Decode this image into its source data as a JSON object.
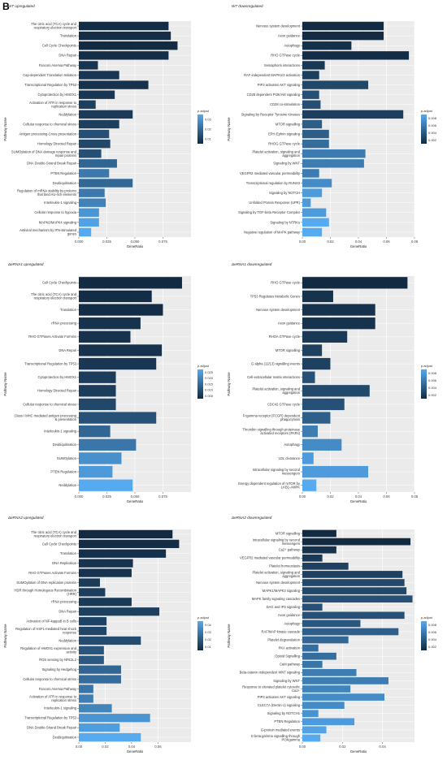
{
  "panel_letter": "B",
  "colors": {
    "high": "#55aaf0",
    "low": "#122a42",
    "panel_bg": "#ebebeb",
    "grid": "#ffffff"
  },
  "chart_data": [
    {
      "type": "bar",
      "orientation": "horizontal",
      "title": "WT upregulated",
      "xlabel": "GeneRatio",
      "ylabel": "Pathway Name",
      "xlim": [
        0,
        0.1
      ],
      "xticks": [
        "0.000",
        "0.025",
        "0.050",
        "0.075"
      ],
      "xtick_values": [
        0,
        0.025,
        0.05,
        0.075
      ],
      "legend": {
        "title": "p.adjust",
        "labels": [
          "0.01",
          "0.02",
          "0.03"
        ],
        "position": "right"
      },
      "categories": [
        "The citric acid (TCA) cycle and respiratory electron transport",
        "Translation",
        "Cell Cycle Checkpoints",
        "DNA Repair",
        "Fanconi Anemia Pathway",
        "Cap-dependent Translation Initiation",
        "Transcriptional Regulation by TP53",
        "Cytoprotection by HMOX1",
        "Activation of ATR in response to replication stress",
        "Neddylation",
        "Cellular response to chemical stress",
        "Antigen processing-Cross presentation",
        "Homology Directed Repair",
        "SUMOylation of DNA damage response and repair proteins",
        "DNA Double-Strand Break Repair",
        "PTEN Regulation",
        "Deubiquitination",
        "Regulation of mRNA stability by proteins that bind AU-rich elements",
        "Interleukin-1 signaling",
        "Cellular response to hypoxia",
        "MAPK6/MAPK4 signaling",
        "Antiviral mechanism by IFN-stimulated genes"
      ],
      "values": [
        0.08,
        0.082,
        0.088,
        0.08,
        0.017,
        0.036,
        0.062,
        0.032,
        0.015,
        0.048,
        0.036,
        0.027,
        0.028,
        0.02,
        0.034,
        0.027,
        0.048,
        0.023,
        0.024,
        0.018,
        0.018,
        0.011
      ],
      "p_adjust": [
        0.0015,
        0.002,
        0.001,
        0.002,
        0.004,
        0.004,
        0.003,
        0.004,
        0.006,
        0.005,
        0.006,
        0.01,
        0.008,
        0.01,
        0.015,
        0.02,
        0.016,
        0.02,
        0.022,
        0.027,
        0.03,
        0.032
      ]
    },
    {
      "type": "bar",
      "orientation": "horizontal",
      "title": "WT downregulated",
      "xlabel": "GeneRatio",
      "ylabel": "Pathway Name",
      "xlim": [
        0,
        0.08
      ],
      "xticks": [
        "0.00",
        "0.02",
        "0.04",
        "0.06",
        "0.08"
      ],
      "xtick_values": [
        0,
        0.02,
        0.04,
        0.06,
        0.08
      ],
      "legend": {
        "title": "p.adjust",
        "labels": [
          "0.002",
          "0.004",
          "0.006",
          "0.008"
        ],
        "position": "right"
      },
      "categories": [
        "Nervous system development",
        "Axon guidance",
        "Autophagy",
        "RHO GTPase cycle",
        "Semaphorin interactions",
        "RAF-independent MAPK1/3 activation",
        "PIP3 activates AKT signaling",
        "CD28 dependent PI3K/Akt signaling",
        "CD28 co-stimulation",
        "Signaling by Receptor Tyrosine Kinases",
        "MTOR signalling",
        "EPH-Ephrin signaling",
        "RHOG GTPase cycle",
        "Platelet activation, signaling and aggregation",
        "Signaling by WNT",
        "VEGFR2 mediated vascular permeability",
        "Transcriptional regulation by RUNX3",
        "Signaling by NOTCH",
        "Unfolded Protein Response (UPR)",
        "Signaling by TGF-beta Receptor Complex",
        "Signaling by NTRKs",
        "Negative regulation of MAPK pathway"
      ],
      "values": [
        0.058,
        0.058,
        0.035,
        0.076,
        0.016,
        0.012,
        0.047,
        0.012,
        0.013,
        0.072,
        0.014,
        0.019,
        0.019,
        0.045,
        0.044,
        0.012,
        0.021,
        0.014,
        0.006,
        0.017,
        0.019,
        0.014
      ],
      "p_adjust": [
        0.0006,
        0.0007,
        0.001,
        0.0008,
        0.0015,
        0.002,
        0.0025,
        0.003,
        0.003,
        0.002,
        0.004,
        0.004,
        0.005,
        0.006,
        0.006,
        0.006,
        0.007,
        0.008,
        0.008,
        0.008,
        0.009,
        0.009
      ]
    },
    {
      "type": "bar",
      "orientation": "horizontal",
      "title": "ΔeRNA1 upregulated",
      "xlabel": "GeneRatio",
      "ylabel": "Pathway Name",
      "xlim": [
        0,
        0.1
      ],
      "xticks": [
        "0.000",
        "0.025",
        "0.050",
        "0.075"
      ],
      "xtick_values": [
        0,
        0.025,
        0.05,
        0.075
      ],
      "legend": {
        "title": "p.adjust",
        "labels": [
          "0.005",
          "0.010",
          "0.015",
          "0.020",
          "0.025"
        ],
        "position": "right"
      },
      "categories": [
        "Cell Cycle Checkpoints",
        "The citric acid (TCA) cycle and respiratory electron transport",
        "Translation",
        "rRNA processing",
        "RHO GTPases Activate Formins",
        "DNA Repair",
        "Transcriptional Regulation by TP53",
        "Cytoprotection by HMOX1",
        "Homology Directed Repair",
        "Cellular response to chemical stress",
        "Class I MHC mediated antigen processing & presentation",
        "Interleukin-1 signaling",
        "Deubiquitination",
        "SUMOylation",
        "PTEN Regulation",
        "Neddylation"
      ],
      "values": [
        0.092,
        0.065,
        0.075,
        0.055,
        0.046,
        0.074,
        0.069,
        0.033,
        0.033,
        0.033,
        0.069,
        0.028,
        0.051,
        0.038,
        0.03,
        0.048
      ],
      "p_adjust": [
        0.0005,
        0.001,
        0.001,
        0.002,
        0.002,
        0.002,
        0.003,
        0.004,
        0.004,
        0.006,
        0.008,
        0.012,
        0.015,
        0.02,
        0.022,
        0.025
      ]
    },
    {
      "type": "bar",
      "orientation": "horizontal",
      "title": "ΔeRNA1 downregulated",
      "xlabel": "GeneRatio",
      "ylabel": "Pathway Name",
      "xlim": [
        0,
        0.08
      ],
      "xticks": [
        "0.00",
        "0.02",
        "0.04",
        "0.06",
        "0.08"
      ],
      "xtick_values": [
        0,
        0.02,
        0.04,
        0.06,
        0.08
      ],
      "legend": {
        "title": "p.adjust",
        "labels": [
          "0.002",
          "0.004",
          "0.006",
          "0.008"
        ],
        "position": "right"
      },
      "categories": [
        "RHO GTPase cycle",
        "TP53 Regulates Metabolic Genes",
        "Nervous system development",
        "Axon guidance",
        "RHOA GTPase cycle",
        "MTOR signalling",
        "G alpha (12/13) signalling events",
        "Cell-extracellular matrix interactions",
        "Platelet activation, signaling and aggregation",
        "CDC42 GTPase cycle",
        "Fcgamma receptor (FCGR) dependent phagocytosis",
        "Thrombin signalling through proteinase activated receptors (PARs)",
        "Autophagy",
        "LDL clearance",
        "Intracellular signaling by second messengers",
        "Energy dependent regulation of mTOR by LKB1-AMPK"
      ],
      "values": [
        0.075,
        0.022,
        0.052,
        0.052,
        0.032,
        0.014,
        0.02,
        0.009,
        0.048,
        0.03,
        0.02,
        0.011,
        0.028,
        0.008,
        0.047,
        0.01
      ],
      "p_adjust": [
        0.0005,
        0.001,
        0.001,
        0.001,
        0.0015,
        0.002,
        0.002,
        0.003,
        0.0025,
        0.003,
        0.004,
        0.006,
        0.007,
        0.008,
        0.008,
        0.009
      ]
    },
    {
      "type": "bar",
      "orientation": "horizontal",
      "title": "ΔeRNA2 upregulated",
      "xlabel": "GeneRatio",
      "ylabel": "Pathway Name",
      "xlim": [
        0,
        0.085
      ],
      "xticks": [
        "0.00",
        "0.02",
        "0.04",
        "0.06"
      ],
      "xtick_values": [
        0,
        0.02,
        0.04,
        0.06
      ],
      "legend": {
        "title": "p.adjust",
        "labels": [
          "0.01",
          "0.02",
          "0.03",
          "0.04"
        ],
        "position": "right"
      },
      "categories": [
        "The citric acid (TCA) cycle and respiratory electron transport",
        "Cell Cycle Checkpoints",
        "Translation",
        "DNA Replication",
        "RHO GTPases Activate Formins",
        "SUMOylation of DNA replication proteins",
        "HDR through Homologous Recombination (HRR)",
        "rRNA processing",
        "DNA Repair",
        "Activation of NF-kappaB in B cells",
        "Regulation of HSF1-mediated heat shock response",
        "Neddylation",
        "Regulation of HMOX1 expression and activity",
        "ROS sensing by NFE2L2",
        "Signaling by Hedgehog",
        "Cellular response to chemical stress",
        "Fanconi Anemia Pathway",
        "Activation of ATR in response to replication stress",
        "Interleukin-1 signaling",
        "Transcriptional Regulation by TP53",
        "DNA Double-Strand Break Repair",
        "Deubiquitination"
      ],
      "values": [
        0.071,
        0.076,
        0.066,
        0.041,
        0.04,
        0.016,
        0.02,
        0.04,
        0.061,
        0.021,
        0.021,
        0.047,
        0.019,
        0.019,
        0.032,
        0.032,
        0.011,
        0.011,
        0.025,
        0.054,
        0.031,
        0.047
      ],
      "p_adjust": [
        0.001,
        0.002,
        0.003,
        0.004,
        0.004,
        0.006,
        0.007,
        0.006,
        0.008,
        0.009,
        0.01,
        0.012,
        0.015,
        0.016,
        0.02,
        0.022,
        0.025,
        0.028,
        0.03,
        0.035,
        0.038,
        0.042
      ]
    },
    {
      "type": "bar",
      "orientation": "horizontal",
      "title": "ΔeRNA2 downregulated",
      "xlabel": "GeneRatio",
      "ylabel": "Pathway Name",
      "xlim": [
        0,
        0.056
      ],
      "xticks": [
        "0.00",
        "0.02",
        "0.04"
      ],
      "xtick_values": [
        0,
        0.02,
        0.04
      ],
      "legend": {
        "title": "p.adjust",
        "labels": [
          "0.002",
          "0.004",
          "0.006",
          "0.008"
        ],
        "position": "right"
      },
      "categories": [
        "MTOR signalling",
        "Intracellular signaling by second messengers",
        "Ca2+ pathway",
        "VEGFR2 mediated vascular permeability",
        "Platelet homeostasis",
        "Platelet activation, signaling and aggregation",
        "Nervous system development",
        "MAPK1/MAPK3 signaling",
        "MAPK family signaling cascades",
        "DAG and IP3 signaling",
        "Axon guidance",
        "Autophagy",
        "RAF/MAP kinase cascade",
        "Platelet degranulation",
        "PKA activation",
        "Opioid Signalling",
        "CaM pathway",
        "Beta-catenin independent WNT signaling",
        "Signaling by WNT",
        "Response to elevated platelet cytosolic Ca2+",
        "PIP3 activates AKT signaling",
        "CLEC7A (Dectin-1) signaling",
        "Signaling by NOTCH1",
        "PTEN Regulation",
        "G-protein mediated events",
        "G beta:gamma signalling through PI3Kgamma"
      ],
      "values": [
        0.017,
        0.054,
        0.017,
        0.01,
        0.023,
        0.05,
        0.051,
        0.052,
        0.055,
        0.01,
        0.051,
        0.029,
        0.048,
        0.023,
        0.008,
        0.017,
        0.01,
        0.027,
        0.043,
        0.024,
        0.041,
        0.021,
        0.008,
        0.026,
        0.012,
        0.009
      ],
      "p_adjust": [
        0.0005,
        0.0005,
        0.001,
        0.0015,
        0.002,
        0.002,
        0.0025,
        0.0025,
        0.003,
        0.003,
        0.003,
        0.0035,
        0.004,
        0.0045,
        0.005,
        0.005,
        0.0055,
        0.006,
        0.006,
        0.0065,
        0.007,
        0.007,
        0.0075,
        0.008,
        0.0085,
        0.009
      ]
    }
  ]
}
